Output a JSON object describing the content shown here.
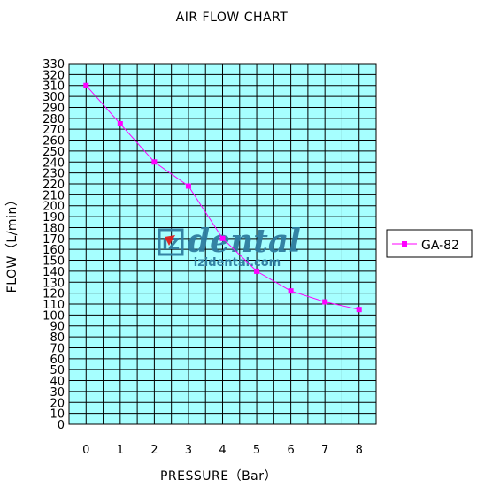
{
  "chart_data": {
    "type": "line",
    "title": "AIR FLOW CHART",
    "xlabel": "PRESSURE（Bar）",
    "ylabel": "FLOW（L/min）",
    "x": [
      0,
      1,
      2,
      3,
      4,
      5,
      6,
      7,
      8
    ],
    "xlim": [
      -0.5,
      8.5
    ],
    "ylim": [
      0,
      330
    ],
    "x_ticks": [
      "0",
      "1",
      "2",
      "3",
      "4",
      "5",
      "6",
      "7",
      "8"
    ],
    "y_ticks": [
      "0",
      "10",
      "20",
      "30",
      "40",
      "50",
      "60",
      "70",
      "80",
      "90",
      "100",
      "110",
      "120",
      "130",
      "140",
      "150",
      "160",
      "170",
      "180",
      "190",
      "200",
      "210",
      "220",
      "230",
      "240",
      "250",
      "260",
      "270",
      "280",
      "290",
      "300",
      "310",
      "320",
      "330"
    ],
    "grid": true,
    "legend_position": "right",
    "series": [
      {
        "name": "GA-82",
        "values": [
          310,
          275,
          240,
          218,
          170,
          140,
          122,
          112,
          105
        ]
      }
    ]
  },
  "colors": {
    "plot_background": "#A6FFFF",
    "grid": "#000000",
    "series_line": "#FF00FF",
    "watermark": "#2E7DA0",
    "watermark_accent": "#E02020"
  },
  "watermark": {
    "logo": "IZ",
    "brand": "dental",
    "url": "izidental.com"
  }
}
